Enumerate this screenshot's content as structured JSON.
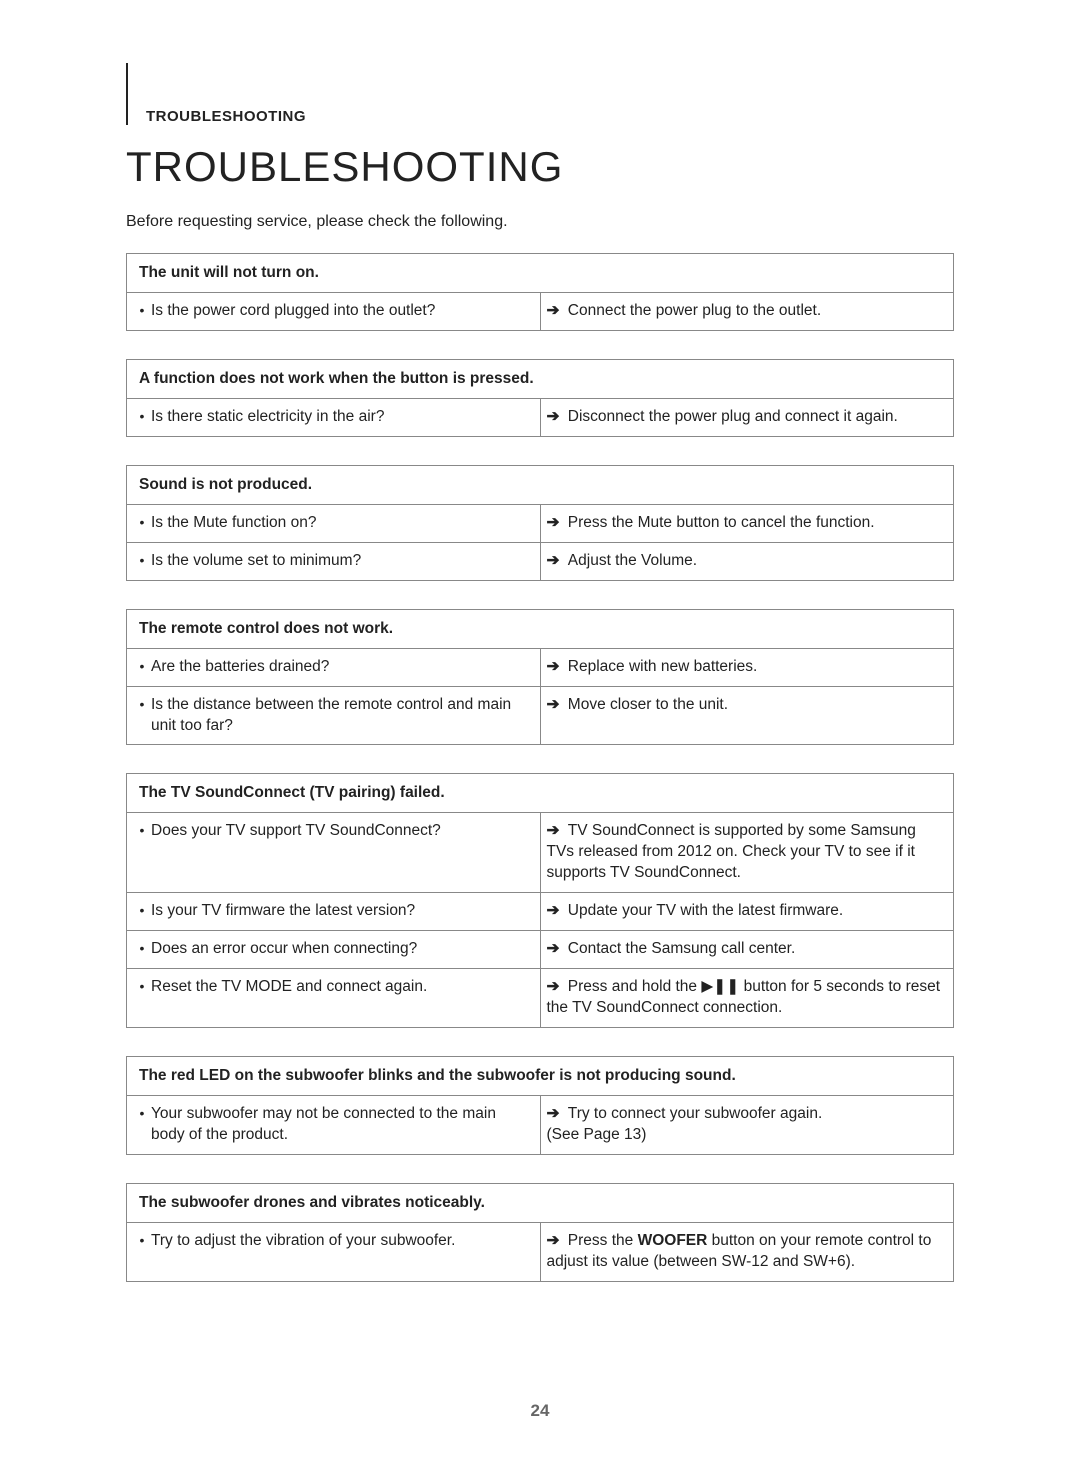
{
  "section_label": "TROUBLESHOOTING",
  "title": "TROUBLESHOOTING",
  "intro": "Before requesting service, please check the following.",
  "page_number": "24",
  "arrow_glyph": "➔",
  "tables": [
    {
      "header": "The unit will not turn on.",
      "rows": [
        {
          "q": "Is the power cord plugged into the outlet?",
          "a": "Connect the power plug to the outlet."
        }
      ]
    },
    {
      "header": "A function does not work when the button is pressed.",
      "rows": [
        {
          "q": "Is there static electricity in the air?",
          "a": "Disconnect the power plug and connect it again."
        }
      ]
    },
    {
      "header": "Sound is not produced.",
      "rows": [
        {
          "q": "Is the Mute function on?",
          "a": "Press the Mute button to cancel the function."
        },
        {
          "q": "Is the volume set to minimum?",
          "a": "Adjust the Volume."
        }
      ]
    },
    {
      "header": "The remote control does not work.",
      "rows": [
        {
          "q": "Are the batteries drained?",
          "a": "Replace with new batteries."
        },
        {
          "q": "Is the distance between the remote control and main unit too far?",
          "a": "Move closer to the unit."
        }
      ]
    },
    {
      "header": "The TV SoundConnect (TV pairing) failed.",
      "rows": [
        {
          "q": "Does your TV support TV SoundConnect?",
          "a": "TV SoundConnect is supported by some Samsung TVs released from 2012 on. Check your TV to see if it supports TV SoundConnect."
        },
        {
          "q": "Is your TV firmware the latest version?",
          "a": "Update your TV with the latest firmware."
        },
        {
          "q": "Does an error occur when connecting?",
          "a": "Contact the Samsung call center."
        },
        {
          "q": "Reset the TV MODE and connect again.",
          "a_pre": "Press and hold the ",
          "a_icon": "▶❚❚",
          "a_post": " button for 5 seconds to reset the TV SoundConnect connection."
        }
      ]
    },
    {
      "header": "The red LED on the subwoofer blinks and the subwoofer is not producing sound.",
      "rows": [
        {
          "q": "Your subwoofer may not be connected to the main body of the product.",
          "a": " Try to connect your subwoofer again.\n(See Page 13)"
        }
      ]
    },
    {
      "header": "The subwoofer drones and vibrates noticeably.",
      "rows": [
        {
          "q": " Try to adjust the vibration of your subwoofer.",
          "a_pre": "Press the ",
          "a_bold": "WOOFER",
          "a_post": " button on your remote control to adjust its value (between SW-12 and SW+6)."
        }
      ]
    }
  ]
}
